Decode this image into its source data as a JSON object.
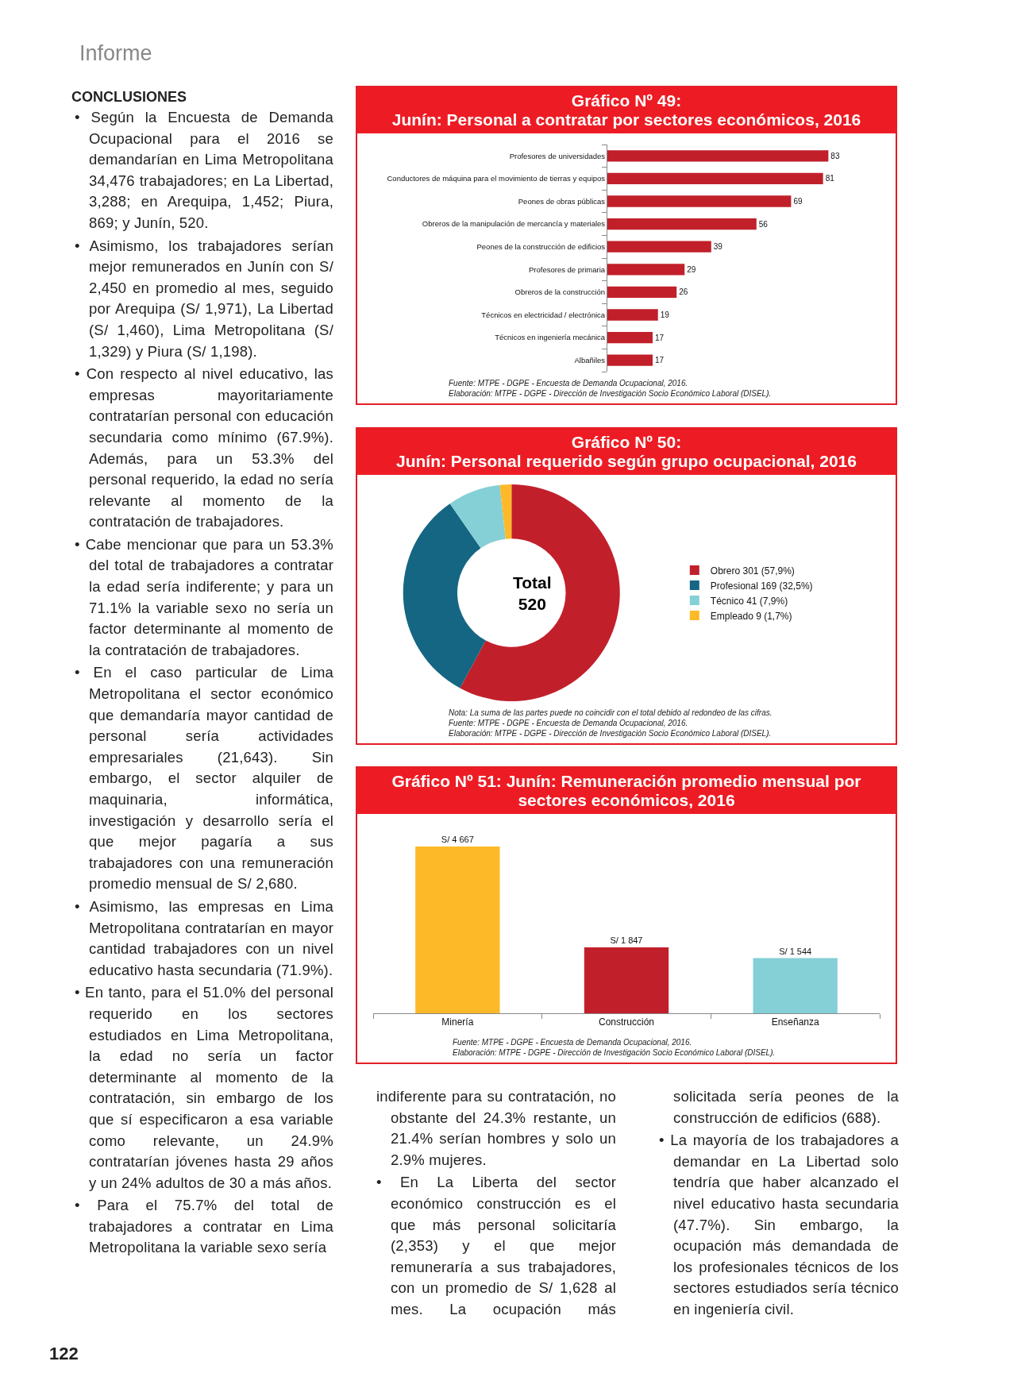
{
  "chart_data": [
    {
      "type": "other",
      "title": "CONCLUSIONES",
      "subtitle": "Informe",
      "annotations": [
        "• Según la Encuesta de Demanda Ocupacional para el 2016 se demandarían en Lima Metropolitana 34,476 trabajadores; en La Libertad, 3,288; en Arequipa, 1,452; Piura, 869; y Junín, 520.",
        "• Asimismo, los trabajadores serían mejor remunerados en Junín con S/ 2,450 en promedio al mes, seguido por Arequipa (S/ 1,971), La Libertad (S/ 1,460), Lima Metropolitana (S/ 1,329) y Piura (S/ 1,198).",
        "• Con respecto al nivel educativo, las empresas mayoritariamente contratarían personal con educación secundaria como mínimo (67.9%). Además, para un 53.3% del personal requerido, la edad no sería relevante al momento de la contratación de trabajadores.",
        "• Cabe mencionar que para un 53.3% del total de trabajadores a contratar la edad sería indiferente; y para un 71.1% la variable sexo no sería un factor determinante al momento de la contratación de trabajadores.",
        "• En el caso particular de Lima Metropolitana el sector económico que demandaría mayor cantidad de personal sería actividades empresariales (21,643). Sin embargo, el sector alquiler de maquinaria, informática, investigación y desarrollo sería el que mejor pagaría a sus trabajadores con una remuneración promedio mensual de S/ 2,680.",
        "• Asimismo, las empresas en Lima Metropolitana contratarían en mayor cantidad trabajadores con un nivel educativo hasta secundaria (71.9%).",
        "• En tanto, para el 51.0% del personal requerido en los sectores estudiados en Lima Metropolitana, la edad no sería un factor determinante al momento de la contratación, sin embargo de los que sí especificaron a esa variable como relevante, un 24.9% contratarían jóvenes hasta 29 años y un 24% adultos de 30 a más años.",
        "• Para el 75.7% del total de trabajadores a contratar en Lima Metropolitana la variable sexo sería"
      ]
    },
    {
      "type": "bar",
      "orientation": "horizontal",
      "title": "Gráfico Nº 49:\nJunín: Personal a contratar por sectores económicos, 2016",
      "categories": [
        "Profesores de universidades",
        "Conductores de máquina para el movimiento de tierras y equipos",
        "Peones de obras públicas",
        "Obreros de la manipulación de mercancía y materiales",
        "Peones de la construcción de edificios",
        "Profesores de primaria",
        "Obreros de la construcción",
        "Técnicos en electricidad / electrónica",
        "Técnicos en ingeniería mecánica",
        "Albañiles"
      ],
      "values": [
        83,
        81,
        69,
        56,
        39,
        29,
        26,
        19,
        17,
        17
      ],
      "color": "#c1202b",
      "data_labels": true,
      "annotations": [
        "Fuente: MTPE - DGPE - Encuesta de Demanda Ocupacional, 2016.",
        "Elaboración: MTPE - DGPE - Dirección de Investigación Socio Económico Laboral (DISEL)."
      ]
    },
    {
      "type": "donut",
      "title": "Gráfico Nº 50:\nJunín: Personal requerido según grupo ocupacional, 2016",
      "categories": [
        "Obrero 301 (57,9%)",
        "Profesional 169 (32,5%)",
        "Técnico 41 (7,9%)",
        "Empleado 9 (1,7%)"
      ],
      "values": [
        301,
        169,
        41,
        9
      ],
      "colors": [
        "#c1202b",
        "#156683",
        "#84d0d6",
        "#fdb927"
      ],
      "legend": "right",
      "annotations": [
        "Total\n520",
        "Nota: La suma de las partes puede no coincidir con el total debido al redondeo de las cifras.",
        "Fuente: MTPE - DGPE - Encuesta de Demanda Ocupacional, 2016.",
        "Elaboración: MTPE - DGPE - Dirección de Investigación Socio Económico Laboral (DISEL)."
      ]
    },
    {
      "type": "bar",
      "title": "Gráfico Nº 51: Junín: Remuneración promedio mensual por sectores económicos, 2016",
      "categories": [
        "Minería",
        "Construcción",
        "Enseñanza"
      ],
      "values": [
        4667,
        1847,
        1544
      ],
      "colors": [
        "#fdb927",
        "#c1202b",
        "#84d0d6"
      ],
      "value_labels": [
        "S/ 4 667",
        "S/ 1 847",
        "S/ 1 544"
      ],
      "annotations": [
        "Fuente: MTPE - DGPE - Encuesta de Demanda Ocupacional, 2016.",
        "Elaboración: MTPE - DGPE - Dirección de Investigación Socio Económico Laboral (DISEL)."
      ]
    },
    {
      "type": "other",
      "annotations": [
        "indiferente para su contratación, no obstante del 24.3% restante, un 21.4% serían hombres y solo un 2.9% mujeres.",
        "• En La Liberta del sector económico construcción es el que más personal solicitaría (2,353) y el que mejor remuneraría a sus trabajadores, con un promedio de S/ 1,628 al mes. La ocupación más solicitada sería peones de la construcción de edificios (688).",
        "• La mayoría de los trabajadores a demandar en La Libertad solo tendría que haber alcanzado el nivel educativo hasta secundaria (47.7%). Sin embargo, la ocupación más demandada de los profesionales técnicos de los sectores estudiados sería técnico en ingeniería civil.",
        "122"
      ]
    }
  ]
}
